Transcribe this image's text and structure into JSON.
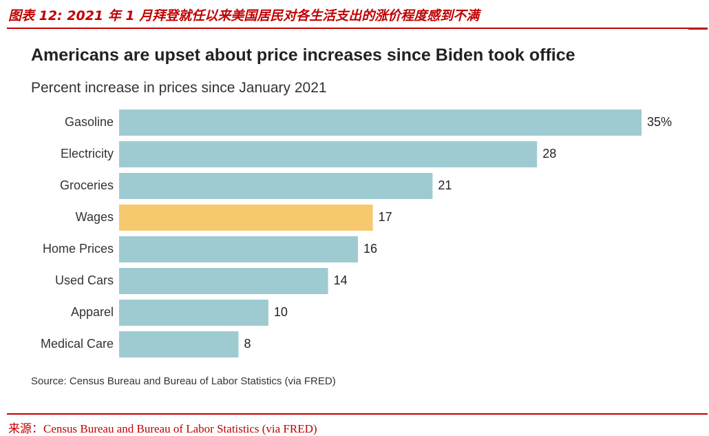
{
  "figure": {
    "title": "图表 12:  2021 年 1 月拜登就任以来美国居民对各生活支出的涨价程度感到不满",
    "source": "来源：Census Bureau and Bureau of Labor Statistics (via FRED)"
  },
  "colors": {
    "accent_red": "#c00000",
    "bar_default": "#9ecbd2",
    "bar_highlight": "#f6c96f"
  },
  "chart_data": {
    "type": "bar",
    "orientation": "horizontal",
    "title": "Americans are upset about price increases since Biden took office",
    "subtitle": "Percent increase in prices since January 2021",
    "source": "Source: Census Bureau and Bureau of Labor Statistics (via FRED)",
    "categories": [
      "Gasoline",
      "Electricity",
      "Groceries",
      "Wages",
      "Home Prices",
      "Used Cars",
      "Apparel",
      "Medical Care"
    ],
    "values": [
      35,
      28,
      21,
      17,
      16,
      14,
      10,
      8
    ],
    "value_labels": [
      "35%",
      "28",
      "21",
      "17",
      "16",
      "14",
      "10",
      "8"
    ],
    "highlight": "Wages",
    "xlim": [
      0,
      35
    ],
    "grid": false,
    "legend": "none"
  }
}
